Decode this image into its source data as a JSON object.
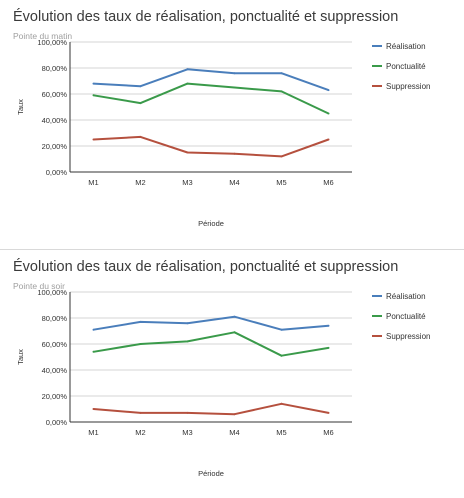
{
  "chart_data": [
    {
      "type": "line",
      "title": "Évolution des taux de réalisation, ponctualité et suppression",
      "subtitle": "Pointe du matin",
      "xlabel": "Période",
      "ylabel": "Taux",
      "categories": [
        "M1",
        "M2",
        "M3",
        "M4",
        "M5",
        "M6"
      ],
      "ylim": [
        0,
        100
      ],
      "yticks": [
        "0,00%",
        "20,00%",
        "40,00%",
        "60,00%",
        "80,00%",
        "100,00%"
      ],
      "grid": "horizontal",
      "legend": "right",
      "series": [
        {
          "name": "Réalisation",
          "color": "#4a7ebb",
          "values": [
            68,
            66,
            79,
            76,
            76,
            63
          ]
        },
        {
          "name": "Ponctualité",
          "color": "#3a9a4a",
          "values": [
            59,
            53,
            68,
            65,
            62,
            45
          ]
        },
        {
          "name": "Suppression",
          "color": "#b5503e",
          "values": [
            25,
            27,
            15,
            14,
            12,
            25
          ]
        }
      ]
    },
    {
      "type": "line",
      "title": "Évolution des taux de réalisation, ponctualité et suppression",
      "subtitle": "Pointe du soir",
      "xlabel": "Période",
      "ylabel": "Taux",
      "categories": [
        "M1",
        "M2",
        "M3",
        "M4",
        "M5",
        "M6"
      ],
      "ylim": [
        0,
        100
      ],
      "yticks": [
        "0,00%",
        "20,00%",
        "40,00%",
        "60,00%",
        "80,00%",
        "100,00%"
      ],
      "grid": "horizontal",
      "legend": "right",
      "series": [
        {
          "name": "Réalisation",
          "color": "#4a7ebb",
          "values": [
            71,
            77,
            76,
            81,
            71,
            74
          ]
        },
        {
          "name": "Ponctualité",
          "color": "#3a9a4a",
          "values": [
            54,
            60,
            62,
            69,
            51,
            57
          ]
        },
        {
          "name": "Suppression",
          "color": "#b5503e",
          "values": [
            10,
            7,
            7,
            6,
            14,
            7
          ]
        }
      ]
    }
  ]
}
